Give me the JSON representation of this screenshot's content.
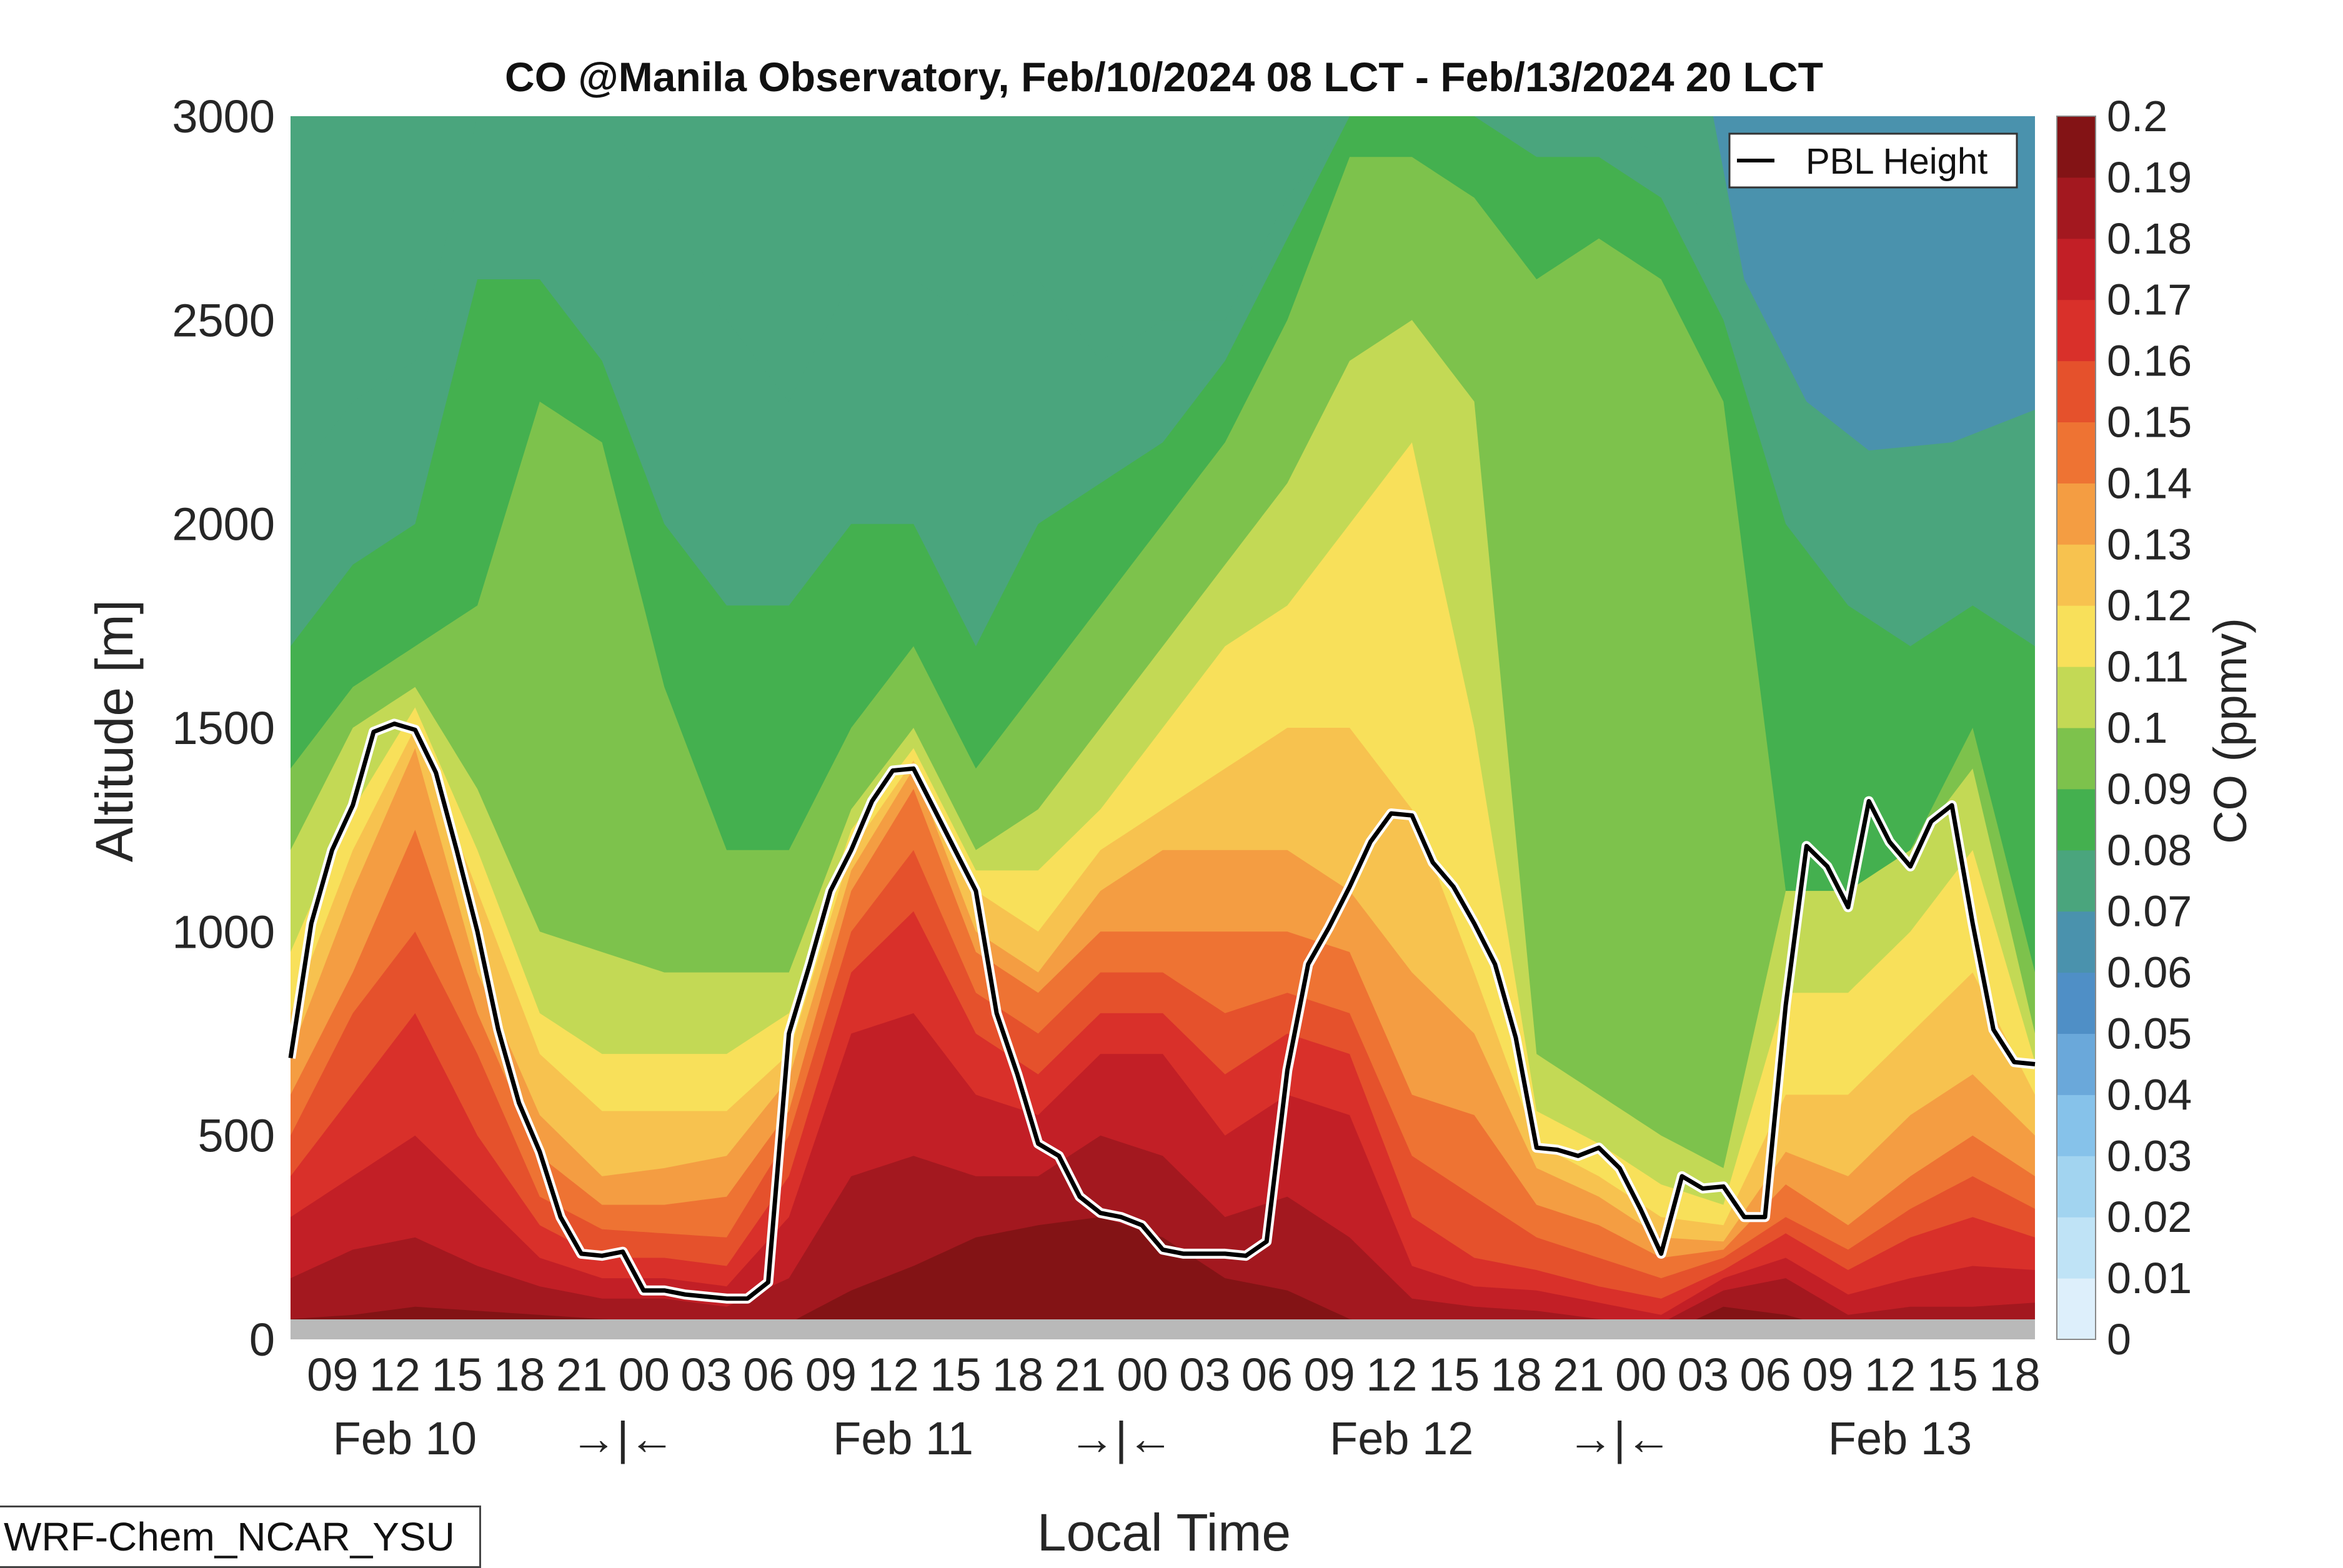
{
  "chart_data": {
    "type": "heatmap",
    "title": "CO @Manila Observatory, Feb/10/2024 08 LCT - Feb/13/2024 20 LCT",
    "xlabel": "Local Time",
    "ylabel": "Altitude [m]",
    "colorbar_label": "CO (ppmv)",
    "model_label": "WRF-Chem_NCAR_YSU",
    "ylim": [
      0,
      3000
    ],
    "y_ticks": [
      "0",
      "500",
      "1000",
      "1500",
      "2000",
      "2500",
      "3000"
    ],
    "x_hour_labels": [
      "09",
      "12",
      "15",
      "18",
      "21",
      "00",
      "03",
      "06",
      "09",
      "12",
      "15",
      "18",
      "21",
      "00",
      "03",
      "06",
      "09",
      "12",
      "15",
      "18",
      "21",
      "00",
      "03",
      "06",
      "09",
      "12",
      "15",
      "18"
    ],
    "x_hours": [
      1,
      4,
      7,
      10,
      13,
      16,
      19,
      22,
      25,
      28,
      31,
      34,
      37,
      40,
      43,
      46,
      49,
      52,
      55,
      58,
      61,
      64,
      67,
      70,
      73,
      76,
      79,
      82
    ],
    "x_day_labels": [
      {
        "text": "Feb 10",
        "hour": 5.5
      },
      {
        "text": "→|←",
        "hour": 16
      },
      {
        "text": "Feb 11",
        "hour": 29.5
      },
      {
        "text": "→|←",
        "hour": 40
      },
      {
        "text": "Feb 12",
        "hour": 53.5
      },
      {
        "text": "→|←",
        "hour": 64
      },
      {
        "text": "Feb 13",
        "hour": 77.5
      }
    ],
    "x_range_hours_from_feb10_08": [
      0,
      84
    ],
    "colorbar_levels": [
      "0",
      "0.01",
      "0.02",
      "0.03",
      "0.04",
      "0.05",
      "0.06",
      "0.07",
      "0.08",
      "0.09",
      "0.1",
      "0.11",
      "0.12",
      "0.13",
      "0.14",
      "0.15",
      "0.16",
      "0.17",
      "0.18",
      "0.19",
      "0.2"
    ],
    "colorbar_colors": [
      "#ffffff",
      "#ddeffb",
      "#bfe3f6",
      "#a2d4f0",
      "#86c2ea",
      "#6aa8da",
      "#4f8fc6",
      "#4a92ad",
      "#4aa57d",
      "#44b04f",
      "#7dc24c",
      "#c3d955",
      "#f8e05a",
      "#f7c24f",
      "#f49d42",
      "#ee7333",
      "#e5512c",
      "#d9302a",
      "#c21f26",
      "#a3181f",
      "#831315"
    ],
    "colorbar_range": [
      0,
      0.2
    ],
    "legend": {
      "entries": [
        "PBL Height"
      ],
      "position": "top-right"
    },
    "pbl_height": {
      "name": "PBL Height",
      "hours": [
        0,
        1,
        2,
        3,
        4,
        5,
        6,
        7,
        8,
        9,
        10,
        11,
        12,
        13,
        14,
        15,
        16,
        17,
        18,
        19,
        20,
        21,
        22,
        23,
        24,
        25,
        26,
        27,
        28,
        29,
        30,
        31,
        32,
        33,
        34,
        35,
        36,
        37,
        38,
        39,
        40,
        41,
        42,
        43,
        44,
        45,
        46,
        47,
        48,
        49,
        50,
        51,
        52,
        53,
        54,
        55,
        56,
        57,
        58,
        59,
        60,
        61,
        62,
        63,
        64,
        65,
        66,
        67,
        68,
        69,
        70,
        71,
        72,
        73,
        74,
        75,
        76,
        77,
        78,
        79,
        80,
        81,
        82,
        83,
        84
      ],
      "values": [
        690,
        1020,
        1200,
        1310,
        1490,
        1510,
        1495,
        1390,
        1200,
        1000,
        760,
        580,
        460,
        300,
        210,
        205,
        215,
        120,
        120,
        110,
        105,
        100,
        100,
        140,
        750,
        920,
        1100,
        1200,
        1320,
        1395,
        1400,
        1300,
        1200,
        1100,
        800,
        650,
        480,
        450,
        350,
        310,
        300,
        280,
        220,
        210,
        210,
        210,
        205,
        240,
        660,
        920,
        1010,
        1110,
        1220,
        1290,
        1285,
        1170,
        1110,
        1020,
        920,
        740,
        470,
        465,
        450,
        470,
        420,
        320,
        210,
        400,
        370,
        375,
        300,
        300,
        820,
        1210,
        1160,
        1060,
        1320,
        1220,
        1160,
        1270,
        1310,
        1020,
        760,
        680,
        675
      ]
    }
  }
}
